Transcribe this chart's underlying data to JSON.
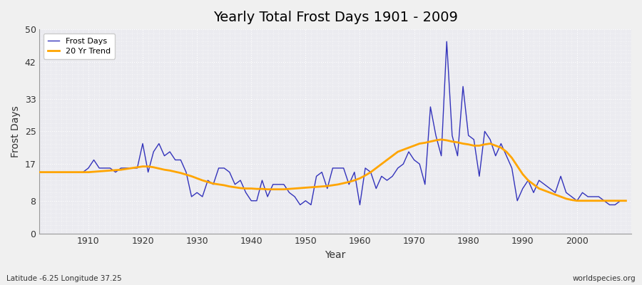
{
  "title": "Yearly Total Frost Days 1901 - 2009",
  "xlabel": "Year",
  "ylabel": "Frost Days",
  "lat_lon_label": "Latitude -6.25 Longitude 37.25",
  "watermark": "worldspecies.org",
  "frost_line_color": "#3333bb",
  "trend_line_color": "#FFA500",
  "bg_color": "#ebebf0",
  "fig_bg_color": "#f0f0f0",
  "ylim": [
    0,
    50
  ],
  "xlim": [
    1901,
    2010
  ],
  "yticks": [
    0,
    8,
    17,
    25,
    33,
    42,
    50
  ],
  "xticks": [
    1910,
    1920,
    1930,
    1940,
    1950,
    1960,
    1970,
    1980,
    1990,
    2000
  ],
  "years": [
    1901,
    1902,
    1903,
    1904,
    1905,
    1906,
    1907,
    1908,
    1909,
    1910,
    1911,
    1912,
    1913,
    1914,
    1915,
    1916,
    1917,
    1918,
    1919,
    1920,
    1921,
    1922,
    1923,
    1924,
    1925,
    1926,
    1927,
    1928,
    1929,
    1930,
    1931,
    1932,
    1933,
    1934,
    1935,
    1936,
    1937,
    1938,
    1939,
    1940,
    1941,
    1942,
    1943,
    1944,
    1945,
    1946,
    1947,
    1948,
    1949,
    1950,
    1951,
    1952,
    1953,
    1954,
    1955,
    1956,
    1957,
    1958,
    1959,
    1960,
    1961,
    1962,
    1963,
    1964,
    1965,
    1966,
    1967,
    1968,
    1969,
    1970,
    1971,
    1972,
    1973,
    1974,
    1975,
    1976,
    1977,
    1978,
    1979,
    1980,
    1981,
    1982,
    1983,
    1984,
    1985,
    1986,
    1987,
    1988,
    1989,
    1990,
    1991,
    1992,
    1993,
    1994,
    1995,
    1996,
    1997,
    1998,
    1999,
    2000,
    2001,
    2002,
    2003,
    2004,
    2005,
    2006,
    2007,
    2008,
    2009
  ],
  "frost_days": [
    15,
    15,
    15,
    15,
    15,
    15,
    15,
    15,
    15,
    16,
    18,
    16,
    16,
    16,
    15,
    16,
    16,
    16,
    16,
    22,
    15,
    20,
    22,
    19,
    20,
    18,
    18,
    15,
    9,
    10,
    9,
    13,
    12,
    16,
    16,
    15,
    12,
    13,
    10,
    8,
    8,
    13,
    9,
    12,
    12,
    12,
    10,
    9,
    7,
    8,
    7,
    14,
    15,
    11,
    16,
    16,
    16,
    12,
    15,
    7,
    16,
    15,
    11,
    14,
    13,
    14,
    16,
    17,
    20,
    18,
    17,
    12,
    31,
    24,
    19,
    47,
    24,
    19,
    36,
    24,
    23,
    14,
    25,
    23,
    19,
    22,
    19,
    16,
    8,
    11,
    13,
    10,
    13,
    12,
    11,
    10,
    14,
    10,
    9,
    8,
    10,
    9,
    9,
    9,
    8,
    7,
    7,
    8,
    8
  ],
  "trend_vals": [
    15.0,
    15.0,
    15.0,
    15.0,
    15.0,
    15.0,
    15.0,
    15.0,
    15.0,
    15.0,
    15.1,
    15.2,
    15.3,
    15.4,
    15.5,
    15.6,
    15.8,
    16.0,
    16.2,
    16.4,
    16.4,
    16.2,
    15.9,
    15.6,
    15.4,
    15.1,
    14.8,
    14.4,
    14.0,
    13.5,
    13.0,
    12.6,
    12.2,
    12.0,
    11.8,
    11.5,
    11.3,
    11.1,
    11.0,
    11.0,
    10.9,
    10.9,
    10.8,
    10.8,
    10.8,
    10.8,
    10.9,
    11.0,
    11.1,
    11.2,
    11.3,
    11.4,
    11.5,
    11.6,
    11.8,
    12.0,
    12.3,
    12.6,
    13.0,
    13.5,
    14.2,
    15.0,
    16.0,
    17.0,
    18.0,
    19.0,
    20.0,
    20.5,
    21.0,
    21.5,
    22.0,
    22.2,
    22.5,
    22.8,
    23.0,
    22.8,
    22.5,
    22.3,
    22.0,
    21.8,
    21.5,
    21.5,
    21.8,
    22.0,
    21.5,
    21.0,
    20.0,
    18.5,
    16.5,
    14.5,
    13.0,
    12.0,
    11.0,
    10.5,
    10.0,
    9.5,
    9.0,
    8.5,
    8.2,
    8.0,
    8.0,
    8.0,
    8.0,
    8.0,
    8.0,
    8.0,
    8.0,
    8.0,
    8.0
  ]
}
